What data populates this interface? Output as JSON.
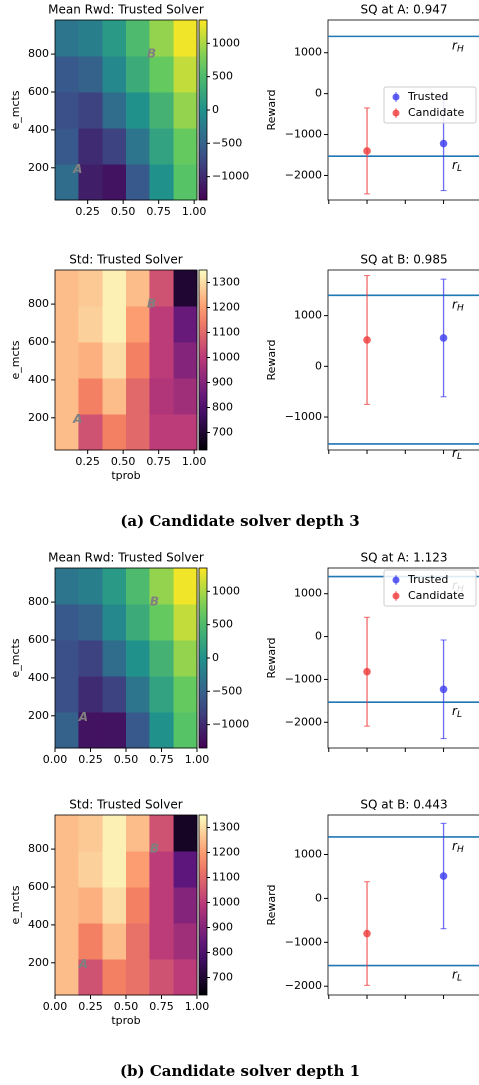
{
  "chart_data": [
    {
      "type": "heatmap",
      "title": "Mean Rwd: Trusted Solver",
      "ylabel": "e_mcts",
      "colormap": "viridis",
      "xlim": [
        0.02,
        1.02
      ],
      "xticks": [
        0.25,
        {
          "value": 0.5,
          "label": "0.50"
        },
        {
          "value": 0.75,
          "label": "0.75"
        },
        {
          "value": 1,
          "label": "1.00"
        }
      ],
      "ylim": [
        30,
        980
      ],
      "yticks": [
        200,
        400,
        600,
        800
      ],
      "clim": [
        -1350,
        1350
      ],
      "cticks": [
        {
          "value": -1000,
          "label": "−1000"
        },
        {
          "value": -500,
          "label": "−500"
        },
        0,
        500,
        1000
      ],
      "x": [
        0.1,
        0.27,
        0.44,
        0.6,
        0.77,
        0.94
      ],
      "y": [
        125,
        315,
        505,
        695,
        885
      ],
      "z": [
        [
          -400,
          -1100,
          -1200,
          -600,
          0,
          600
        ],
        [
          -600,
          -1000,
          -800,
          -300,
          200,
          700
        ],
        [
          -700,
          -800,
          -400,
          0,
          400,
          900
        ],
        [
          -600,
          -500,
          -100,
          300,
          700,
          1100
        ],
        [
          -300,
          -200,
          100,
          500,
          900,
          1300
        ]
      ],
      "annotations": [
        {
          "text": "A",
          "x": 0.18,
          "y": 190
        },
        {
          "text": "B",
          "x": 0.7,
          "y": 800
        }
      ]
    },
    {
      "type": "errorbar",
      "title": "SQ at A: 0.947",
      "ylabel": "Reward",
      "legend": "center right",
      "xlim": [
        -0.51,
        1.45
      ],
      "xticks": [
        -0.5,
        0,
        0.5,
        1
      ],
      "ylim": [
        -2600,
        1800
      ],
      "yticks": [
        {
          "value": -2000,
          "label": "−2000"
        },
        {
          "value": -1000,
          "label": "−1000"
        },
        0,
        1000
      ],
      "series": [
        {
          "name": "Trusted",
          "color": "#3b3bef",
          "x": [
            1
          ],
          "values": [
            -1220
          ],
          "errors": [
            1150
          ]
        },
        {
          "name": "Candidate",
          "color": "#ef3b3b",
          "x": [
            0
          ],
          "values": [
            -1400
          ],
          "errors": [
            1050
          ]
        }
      ],
      "hlines": [
        {
          "value": 1400,
          "label": "r",
          "sub": "H"
        },
        {
          "value": -1530,
          "label": "r",
          "sub": "L"
        }
      ]
    },
    {
      "type": "heatmap",
      "title": "Std: Trusted Solver",
      "xlabel": "tprob",
      "ylabel": "e_mcts",
      "colormap": "magma",
      "xlim": [
        0.02,
        1.02
      ],
      "xticks": [
        0.25,
        {
          "value": 0.5,
          "label": "0.50"
        },
        {
          "value": 0.75,
          "label": "0.75"
        },
        {
          "value": 1,
          "label": "1.00"
        }
      ],
      "ylim": [
        30,
        980
      ],
      "yticks": [
        200,
        400,
        600,
        800
      ],
      "clim": [
        630,
        1350
      ],
      "cticks": [
        700,
        800,
        900,
        1000,
        1100,
        1200,
        1300
      ],
      "x": [
        0.1,
        0.27,
        0.44,
        0.6,
        0.77,
        0.94
      ],
      "y": [
        125,
        315,
        505,
        695,
        885
      ],
      "z": [
        [
          1250,
          1050,
          1150,
          1100,
          1000,
          1000
        ],
        [
          1250,
          1150,
          1250,
          1100,
          980,
          950
        ],
        [
          1250,
          1230,
          1300,
          1150,
          1000,
          900
        ],
        [
          1250,
          1280,
          1330,
          1200,
          1000,
          850
        ],
        [
          1250,
          1270,
          1330,
          1250,
          1050,
          700
        ]
      ],
      "annotations": [
        {
          "text": "A",
          "x": 0.18,
          "y": 190
        },
        {
          "text": "B",
          "x": 0.7,
          "y": 800
        }
      ]
    },
    {
      "type": "errorbar",
      "title": "SQ at B: 0.985",
      "ylabel": "Reward",
      "xlim": [
        -0.51,
        1.45
      ],
      "xticks": [
        -0.5,
        0,
        0.5,
        1
      ],
      "ylim": [
        -1650,
        1900
      ],
      "yticks": [
        {
          "value": -1000,
          "label": "−1000"
        },
        0,
        1000
      ],
      "series": [
        {
          "name": "Trusted",
          "color": "#3b3bef",
          "x": [
            1
          ],
          "values": [
            560
          ],
          "errors": [
            1160
          ]
        },
        {
          "name": "Candidate",
          "color": "#ef3b3b",
          "x": [
            0
          ],
          "values": [
            520
          ],
          "errors": [
            1270
          ]
        }
      ],
      "hlines": [
        {
          "value": 1400,
          "label": "r",
          "sub": "H"
        },
        {
          "value": -1530,
          "label": "r",
          "sub": "L"
        }
      ]
    },
    {
      "type": "heatmap",
      "title": "Mean Rwd: Trusted Solver",
      "ylabel": "e_mcts",
      "colormap": "viridis",
      "xlim": [
        0,
        1
      ],
      "xticks": [
        {
          "value": 0,
          "label": "0.00"
        },
        0.25,
        {
          "value": 0.5,
          "label": "0.50"
        },
        {
          "value": 0.75,
          "label": "0.75"
        },
        {
          "value": 1,
          "label": "1.00"
        }
      ],
      "ylim": [
        30,
        980
      ],
      "yticks": [
        200,
        400,
        600,
        800
      ],
      "clim": [
        -1350,
        1350
      ],
      "cticks": [
        {
          "value": -1000,
          "label": "−1000"
        },
        {
          "value": -500,
          "label": "−500"
        },
        0,
        500,
        1000
      ],
      "x": [
        0.08,
        0.25,
        0.42,
        0.58,
        0.75,
        0.92
      ],
      "y": [
        125,
        315,
        505,
        695,
        885
      ],
      "z": [
        [
          -500,
          -1200,
          -1200,
          -600,
          0,
          600
        ],
        [
          -700,
          -1000,
          -800,
          -300,
          200,
          700
        ],
        [
          -700,
          -800,
          -400,
          0,
          400,
          900
        ],
        [
          -600,
          -500,
          -100,
          300,
          700,
          1100
        ],
        [
          -300,
          -200,
          100,
          500,
          900,
          1300
        ]
      ],
      "annotations": [
        {
          "text": "A",
          "x": 0.2,
          "y": 190
        },
        {
          "text": "B",
          "x": 0.7,
          "y": 800
        }
      ]
    },
    {
      "type": "errorbar",
      "title": "SQ at A: 1.123",
      "ylabel": "Reward",
      "legend": "upper right",
      "xlim": [
        -0.51,
        1.45
      ],
      "xticks": [
        -0.5,
        0,
        0.5,
        1
      ],
      "ylim": [
        -2600,
        1600
      ],
      "yticks": [
        {
          "value": -2000,
          "label": "−2000"
        },
        {
          "value": -1000,
          "label": "−1000"
        },
        0,
        1000
      ],
      "series": [
        {
          "name": "Trusted",
          "color": "#3b3bef",
          "x": [
            1
          ],
          "values": [
            -1230
          ],
          "errors": [
            1150
          ]
        },
        {
          "name": "Candidate",
          "color": "#ef3b3b",
          "x": [
            0
          ],
          "values": [
            -820
          ],
          "errors": [
            1270
          ]
        }
      ],
      "hlines": [
        {
          "value": 1400,
          "label": "r",
          "sub": "H"
        },
        {
          "value": -1530,
          "label": "r",
          "sub": "L"
        }
      ]
    },
    {
      "type": "heatmap",
      "title": "Std: Trusted Solver",
      "xlabel": "tprob",
      "ylabel": "e_mcts",
      "colormap": "magma",
      "xlim": [
        0,
        1
      ],
      "xticks": [
        {
          "value": 0,
          "label": "0.00"
        },
        0.25,
        {
          "value": 0.5,
          "label": "0.50"
        },
        {
          "value": 0.75,
          "label": "0.75"
        },
        {
          "value": 1,
          "label": "1.00"
        }
      ],
      "ylim": [
        30,
        980
      ],
      "yticks": [
        200,
        400,
        600,
        800
      ],
      "clim": [
        630,
        1350
      ],
      "cticks": [
        700,
        800,
        900,
        1000,
        1100,
        1200,
        1300
      ],
      "x": [
        0.08,
        0.25,
        0.42,
        0.58,
        0.75,
        0.92
      ],
      "y": [
        125,
        315,
        505,
        695,
        885
      ],
      "z": [
        [
          1250,
          1050,
          1150,
          1120,
          1050,
          1000
        ],
        [
          1250,
          1150,
          1250,
          1120,
          1000,
          950
        ],
        [
          1250,
          1230,
          1300,
          1150,
          1000,
          900
        ],
        [
          1250,
          1280,
          1330,
          1200,
          1000,
          830
        ],
        [
          1250,
          1270,
          1330,
          1250,
          1050,
          680
        ]
      ],
      "annotations": [
        {
          "text": "A",
          "x": 0.2,
          "y": 190
        },
        {
          "text": "B",
          "x": 0.7,
          "y": 800
        }
      ]
    },
    {
      "type": "errorbar",
      "title": "SQ at B: 0.443",
      "ylabel": "Reward",
      "xlim": [
        -0.51,
        1.45
      ],
      "xticks": [
        -0.5,
        0,
        0.5,
        1
      ],
      "ylim": [
        -2200,
        1900
      ],
      "yticks": [
        {
          "value": -2000,
          "label": "−2000"
        },
        {
          "value": -1000,
          "label": "−1000"
        },
        0,
        1000
      ],
      "series": [
        {
          "name": "Trusted",
          "color": "#3b3bef",
          "x": [
            1
          ],
          "values": [
            510
          ],
          "errors": [
            1200
          ]
        },
        {
          "name": "Candidate",
          "color": "#ef3b3b",
          "x": [
            0
          ],
          "values": [
            -800
          ],
          "errors": [
            1180
          ]
        }
      ],
      "hlines": [
        {
          "value": 1400,
          "label": "r",
          "sub": "H"
        },
        {
          "value": -1530,
          "label": "r",
          "sub": "L"
        }
      ]
    }
  ],
  "captions": [
    "(a) Candidate solver depth 3",
    "(b) Candidate solver depth 1"
  ]
}
